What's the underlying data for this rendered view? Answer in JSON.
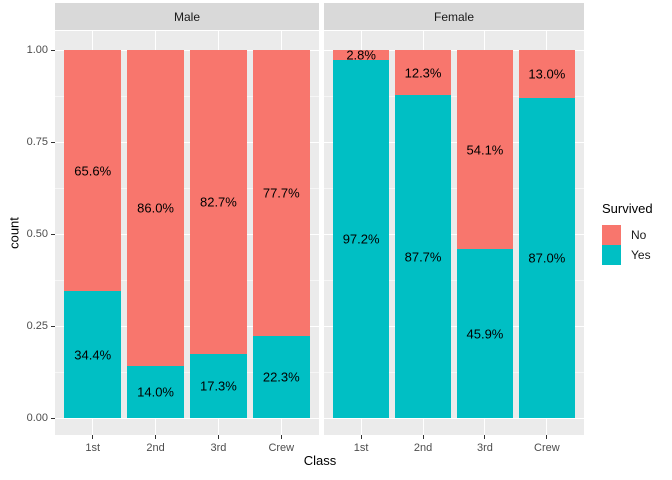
{
  "chart_data": {
    "type": "bar",
    "variant": "stacked-fill-faceted",
    "title": "",
    "xlabel": "Class",
    "ylabel": "count",
    "legend_title": "Survived",
    "legend_position": "right",
    "legend": [
      {
        "label": "No",
        "color": "#F8766D"
      },
      {
        "label": "Yes",
        "color": "#00BFC4"
      }
    ],
    "categories": [
      "1st",
      "2nd",
      "3rd",
      "Crew"
    ],
    "ylim": [
      0,
      1
    ],
    "grid": true,
    "yticks": [
      {
        "value": 1.0,
        "label": "1.00"
      },
      {
        "value": 0.75,
        "label": "0.75"
      },
      {
        "value": 0.5,
        "label": "0.50"
      },
      {
        "value": 0.25,
        "label": "0.25"
      },
      {
        "value": 0.0,
        "label": "0.00"
      }
    ],
    "facets": [
      {
        "label": "Male",
        "bars": [
          {
            "category": "1st",
            "no_pct": 65.6,
            "yes_pct": 34.4,
            "no_label": "65.6%",
            "yes_label": "34.4%"
          },
          {
            "category": "2nd",
            "no_pct": 86.0,
            "yes_pct": 14.0,
            "no_label": "86.0%",
            "yes_label": "14.0%"
          },
          {
            "category": "3rd",
            "no_pct": 82.7,
            "yes_pct": 17.3,
            "no_label": "82.7%",
            "yes_label": "17.3%"
          },
          {
            "category": "Crew",
            "no_pct": 77.7,
            "yes_pct": 22.3,
            "no_label": "77.7%",
            "yes_label": "22.3%"
          }
        ]
      },
      {
        "label": "Female",
        "bars": [
          {
            "category": "1st",
            "no_pct": 2.8,
            "yes_pct": 97.2,
            "no_label": "2.8%",
            "yes_label": "97.2%"
          },
          {
            "category": "2nd",
            "no_pct": 12.3,
            "yes_pct": 87.7,
            "no_label": "12.3%",
            "yes_label": "87.7%"
          },
          {
            "category": "3rd",
            "no_pct": 54.1,
            "yes_pct": 45.9,
            "no_label": "54.1%",
            "yes_label": "45.9%"
          },
          {
            "category": "Crew",
            "no_pct": 13.0,
            "yes_pct": 87.0,
            "no_label": "13.0%",
            "yes_label": "87.0%"
          }
        ]
      }
    ],
    "colors": {
      "no": "#F8766D",
      "yes": "#00BFC4",
      "panel_bg": "#EBEBEB",
      "strip_bg": "#D9D9D9",
      "gridline": "#FFFFFF",
      "tick_mark": "#333333",
      "tick_text": "#4D4D4D",
      "axis_title": "#000000",
      "background": "#FFFFFF"
    }
  }
}
